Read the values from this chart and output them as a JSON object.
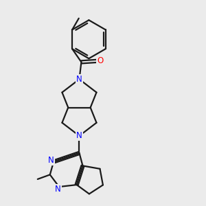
{
  "bg_color": "#ebebeb",
  "bond_color": "#1a1a1a",
  "nitrogen_color": "#0000ff",
  "oxygen_color": "#ff0000",
  "line_width": 1.6,
  "font_size": 8.5,
  "figsize": [
    3.0,
    3.0
  ],
  "dpi": 100,
  "xlim": [
    0,
    10
  ],
  "ylim": [
    0,
    10
  ]
}
